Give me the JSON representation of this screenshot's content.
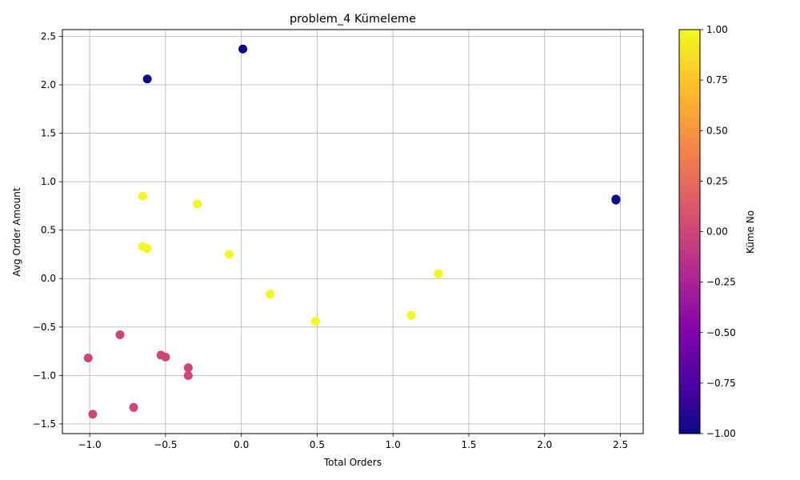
{
  "chart_data": {
    "type": "scatter",
    "title": "problem_4 Kümeleme",
    "xlabel": "Total Orders",
    "ylabel": "Avg Order Amount",
    "xlim": [
      -1.18,
      2.65
    ],
    "ylim": [
      -1.6,
      2.57
    ],
    "xticks": [
      -1.0,
      -0.5,
      0.0,
      0.5,
      1.0,
      1.5,
      2.0,
      2.5
    ],
    "xtick_labels": [
      "−1.0",
      "−0.5",
      "0.0",
      "0.5",
      "1.0",
      "1.5",
      "2.0",
      "2.5"
    ],
    "yticks": [
      -1.5,
      -1.0,
      -0.5,
      0.0,
      0.5,
      1.0,
      1.5,
      2.0,
      2.5
    ],
    "ytick_labels": [
      "−1.5",
      "−1.0",
      "−0.5",
      "0.0",
      "0.5",
      "1.0",
      "1.5",
      "2.0",
      "2.5"
    ],
    "grid": true,
    "colormap": "plasma",
    "colorbar": {
      "label": "Küme No",
      "range": [
        -1.0,
        1.0
      ],
      "ticks": [
        -1.0,
        -0.75,
        -0.5,
        -0.25,
        0.0,
        0.25,
        0.5,
        0.75,
        1.0
      ],
      "tick_labels": [
        "−1.00",
        "−0.75",
        "−0.50",
        "−0.25",
        "0.00",
        "0.25",
        "0.50",
        "0.75",
        "1.00"
      ]
    },
    "cluster_colors": {
      "-1": "#0d0887",
      "0": "#cc4778",
      "1": "#f0f921"
    },
    "points": [
      {
        "x": 0.01,
        "y": 2.37,
        "cluster": -1
      },
      {
        "x": -0.62,
        "y": 2.06,
        "cluster": -1
      },
      {
        "x": 2.47,
        "y": 0.82,
        "cluster": -1
      },
      {
        "x": 2.47,
        "y": 0.81,
        "cluster": -1
      },
      {
        "x": -0.65,
        "y": 0.85,
        "cluster": 1
      },
      {
        "x": -0.29,
        "y": 0.77,
        "cluster": 1
      },
      {
        "x": -0.65,
        "y": 0.33,
        "cluster": 1
      },
      {
        "x": -0.62,
        "y": 0.31,
        "cluster": 1
      },
      {
        "x": -0.08,
        "y": 0.25,
        "cluster": 1
      },
      {
        "x": 1.3,
        "y": 0.05,
        "cluster": 1
      },
      {
        "x": 0.19,
        "y": -0.16,
        "cluster": 1
      },
      {
        "x": 1.12,
        "y": -0.38,
        "cluster": 1
      },
      {
        "x": 0.49,
        "y": -0.44,
        "cluster": 1
      },
      {
        "x": -0.8,
        "y": -0.58,
        "cluster": 0
      },
      {
        "x": -1.01,
        "y": -0.82,
        "cluster": 0
      },
      {
        "x": -0.53,
        "y": -0.79,
        "cluster": 0
      },
      {
        "x": -0.5,
        "y": -0.81,
        "cluster": 0
      },
      {
        "x": -0.35,
        "y": -0.92,
        "cluster": 0
      },
      {
        "x": -0.35,
        "y": -1.0,
        "cluster": 0
      },
      {
        "x": -0.71,
        "y": -1.33,
        "cluster": 0
      },
      {
        "x": -0.98,
        "y": -1.4,
        "cluster": 0
      }
    ]
  }
}
